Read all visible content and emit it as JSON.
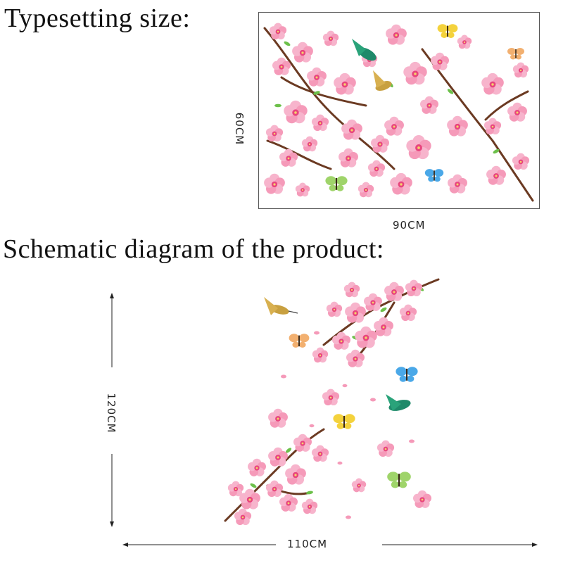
{
  "headings": {
    "typesetting": "Typesetting size:",
    "schematic": "Schematic diagram of the product:"
  },
  "dimensions": {
    "sheet_width": "90CM",
    "sheet_height": "60CM",
    "product_width": "110CM",
    "product_height": "120CM"
  },
  "colors": {
    "branch": "#6b3a22",
    "blossom_light": "#f7b4cc",
    "blossom_dark": "#e8457e",
    "leaf": "#6cc04a",
    "line": "#222222"
  }
}
